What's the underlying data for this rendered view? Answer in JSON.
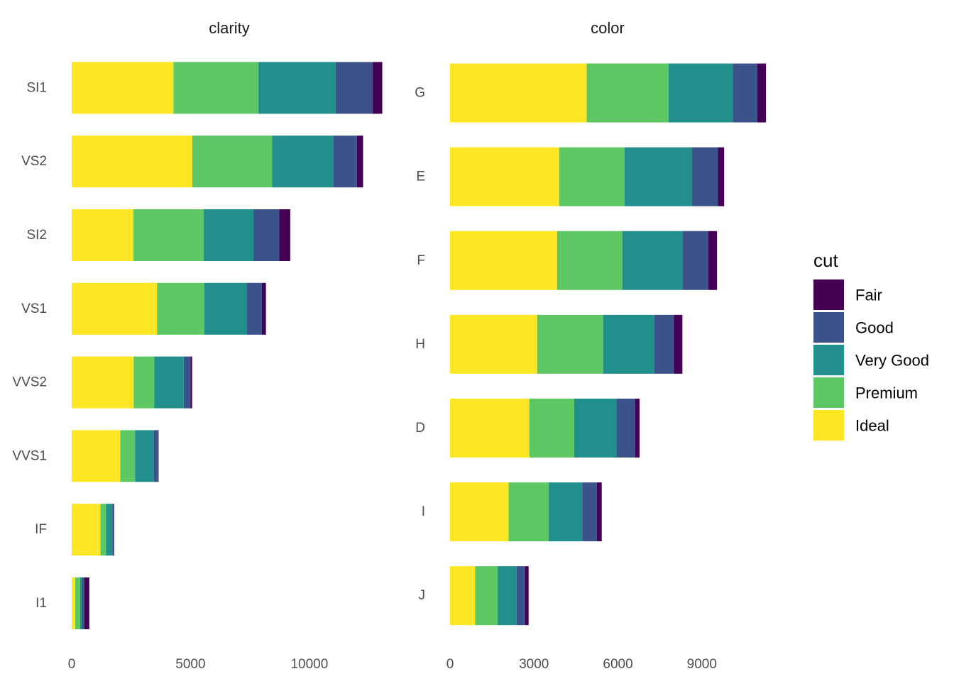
{
  "chart_data": [
    {
      "type": "bar",
      "orientation": "horizontal",
      "stacked": true,
      "title": "clarity",
      "categories": [
        "SI1",
        "VS2",
        "SI2",
        "VS1",
        "VVS2",
        "VVS1",
        "IF",
        "I1"
      ],
      "xticks": [
        0,
        5000,
        10000
      ],
      "xlim": [
        0,
        13500
      ],
      "series": [
        {
          "name": "Ideal",
          "values": [
            4282,
            5071,
            2598,
            3589,
            2606,
            2047,
            1212,
            146
          ]
        },
        {
          "name": "Premium",
          "values": [
            3575,
            3357,
            2949,
            1989,
            870,
            616,
            230,
            205
          ]
        },
        {
          "name": "Very Good",
          "values": [
            3240,
            2591,
            2100,
            1775,
            1235,
            789,
            268,
            84
          ]
        },
        {
          "name": "Good",
          "values": [
            1560,
            978,
            1081,
            648,
            286,
            186,
            71,
            96
          ]
        },
        {
          "name": "Fair",
          "values": [
            408,
            261,
            466,
            170,
            69,
            17,
            9,
            210
          ]
        }
      ]
    },
    {
      "type": "bar",
      "orientation": "horizontal",
      "stacked": true,
      "title": "color",
      "categories": [
        "G",
        "E",
        "F",
        "H",
        "D",
        "I",
        "J"
      ],
      "xticks": [
        0,
        3000,
        6000,
        9000
      ],
      "xlim": [
        0,
        11300
      ],
      "series": [
        {
          "name": "Ideal",
          "values": [
            4884,
            3903,
            3826,
            3115,
            2834,
            2093,
            896
          ]
        },
        {
          "name": "Premium",
          "values": [
            2924,
            2337,
            2331,
            2360,
            1603,
            1428,
            808
          ]
        },
        {
          "name": "Very Good",
          "values": [
            2299,
            2400,
            2164,
            1824,
            1513,
            1204,
            678
          ]
        },
        {
          "name": "Good",
          "values": [
            871,
            933,
            909,
            702,
            662,
            522,
            307
          ]
        },
        {
          "name": "Fair",
          "values": [
            314,
            224,
            312,
            303,
            163,
            175,
            119
          ]
        }
      ]
    }
  ],
  "legend": {
    "title": "cut",
    "position": "right",
    "items": [
      {
        "name": "Fair",
        "color": "#440154"
      },
      {
        "name": "Good",
        "color": "#3b528b"
      },
      {
        "name": "Very Good",
        "color": "#21908c"
      },
      {
        "name": "Premium",
        "color": "#5dc863"
      },
      {
        "name": "Ideal",
        "color": "#fde725"
      }
    ]
  }
}
